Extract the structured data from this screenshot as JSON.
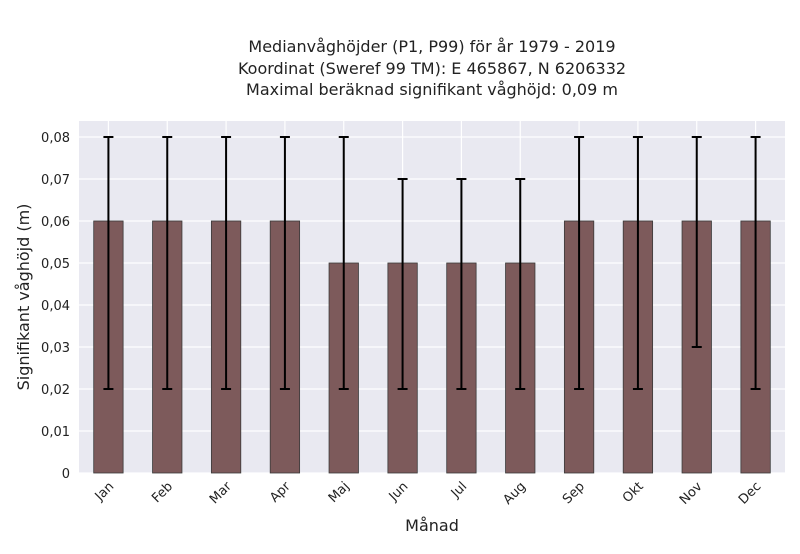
{
  "chart_data": {
    "type": "bar",
    "title_lines": [
      "Medianvåghöjder (P1, P99) för år 1979 - 2019",
      "Koordinat (Sweref 99 TM): E 465867, N 6206332",
      "Maximal beräknad signifikant våghöjd: 0,09 m"
    ],
    "xlabel": "Månad",
    "ylabel": "Signifikant våghöjd (m)",
    "categories": [
      "Jan",
      "Feb",
      "Mar",
      "Apr",
      "Maj",
      "Jun",
      "Jul",
      "Aug",
      "Sep",
      "Okt",
      "Nov",
      "Dec"
    ],
    "values": [
      0.06,
      0.06,
      0.06,
      0.06,
      0.05,
      0.05,
      0.05,
      0.05,
      0.06,
      0.06,
      0.06,
      0.06
    ],
    "p1": [
      0.02,
      0.02,
      0.02,
      0.02,
      0.02,
      0.02,
      0.02,
      0.02,
      0.02,
      0.02,
      0.03,
      0.02
    ],
    "p99": [
      0.08,
      0.08,
      0.08,
      0.08,
      0.08,
      0.07,
      0.07,
      0.07,
      0.08,
      0.08,
      0.08,
      0.08
    ],
    "ylim": [
      0,
      0.08
    ],
    "yticks": [
      0,
      0.01,
      0.02,
      0.03,
      0.04,
      0.05,
      0.06,
      0.07,
      0.08
    ],
    "ytick_labels": [
      "0",
      "0,01",
      "0,02",
      "0,03",
      "0,04",
      "0,05",
      "0,06",
      "0,07",
      "0,08"
    ],
    "grid": true,
    "colors": {
      "bar": "#7d5a5b",
      "bar_edge": "#3a3a3a",
      "plot_bg": "#e9e9f1",
      "grid": "#ffffff",
      "errorbar": "#000000"
    }
  }
}
